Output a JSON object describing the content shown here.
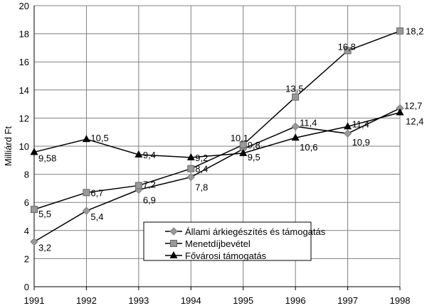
{
  "chart_data": {
    "type": "line",
    "title": "",
    "xlabel": "",
    "ylabel": "Milliárd Ft",
    "x": [
      1991,
      1992,
      1993,
      1994,
      1995,
      1996,
      1997,
      1998
    ],
    "x_tick_labels": [
      "1991",
      "1992",
      "1993",
      "1994",
      "1995",
      "1996",
      "1997",
      "1998"
    ],
    "ylim": [
      0,
      20
    ],
    "y_ticks": [
      0,
      2,
      4,
      6,
      8,
      10,
      12,
      14,
      16,
      18,
      20
    ],
    "grid": true,
    "legend_position": "bottom-center",
    "series": [
      {
        "name": "Állami árkiegészítés és támogatás",
        "marker": "diamond",
        "color": "#999999",
        "values": [
          3.2,
          5.4,
          6.9,
          7.8,
          9.8,
          11.4,
          10.9,
          12.7
        ],
        "labels": [
          "3,2",
          "5,4",
          "6,9",
          "7,8",
          "9,8",
          "11,4",
          "10,9",
          "12,7"
        ]
      },
      {
        "name": "Menetdíjbevétel",
        "marker": "square",
        "color": "#999999",
        "values": [
          5.5,
          6.7,
          7.2,
          8.4,
          10.1,
          13.5,
          16.8,
          18.2
        ],
        "labels": [
          "5,5",
          "6,7",
          "7,2",
          "8,4",
          "10,1",
          "13,5",
          "16,8",
          "18,2"
        ]
      },
      {
        "name": "Fővárosi támogatás",
        "marker": "triangle",
        "color": "#000000",
        "values": [
          9.58,
          10.5,
          9.4,
          9.2,
          9.5,
          10.6,
          11.4,
          12.4
        ],
        "labels": [
          "9,58",
          "10,5",
          "9,4",
          "9,2",
          "9,5",
          "10,6",
          "11,4",
          "12,4"
        ]
      }
    ]
  }
}
